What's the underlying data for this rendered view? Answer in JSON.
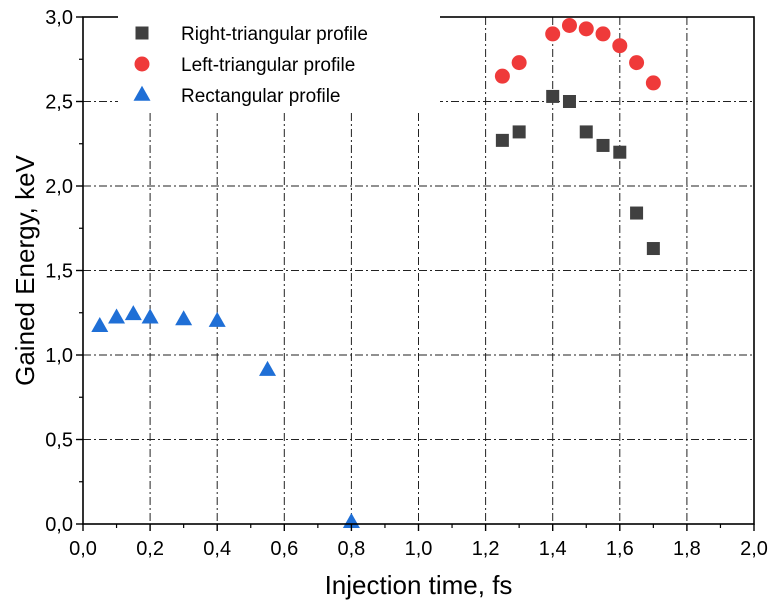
{
  "chart_data": {
    "type": "scatter",
    "title": "",
    "xlabel": "Injection time, fs",
    "ylabel": "Gained Energy, keV",
    "xlim": [
      0.0,
      2.0
    ],
    "ylim": [
      0.0,
      3.0
    ],
    "x_ticks": [
      0.0,
      0.2,
      0.4,
      0.6,
      0.8,
      1.0,
      1.2,
      1.4,
      1.6,
      1.8,
      2.0
    ],
    "y_ticks": [
      0.0,
      0.5,
      1.0,
      1.5,
      2.0,
      2.5,
      3.0
    ],
    "x_tick_labels": [
      "0,0",
      "0,2",
      "0,4",
      "0,6",
      "0,8",
      "1,0",
      "1,2",
      "1,4",
      "1,6",
      "1,8",
      "2,0"
    ],
    "y_tick_labels": [
      "0,0",
      "0,5",
      "1,0",
      "1,5",
      "2,0",
      "2,5",
      "3,0"
    ],
    "grid": true,
    "legend_position": "top-left",
    "series": [
      {
        "name": "Right-triangular profile",
        "marker": "square",
        "color": "#404040",
        "x": [
          1.25,
          1.3,
          1.4,
          1.45,
          1.5,
          1.55,
          1.6,
          1.65,
          1.7
        ],
        "y": [
          2.27,
          2.32,
          2.53,
          2.5,
          2.32,
          2.24,
          2.2,
          1.84,
          1.63
        ]
      },
      {
        "name": "Left-triangular profile",
        "marker": "circle",
        "color": "#ef3a3a",
        "x": [
          1.25,
          1.3,
          1.4,
          1.45,
          1.5,
          1.55,
          1.6,
          1.65,
          1.7
        ],
        "y": [
          2.65,
          2.73,
          2.9,
          2.95,
          2.93,
          2.9,
          2.83,
          2.73,
          2.61
        ]
      },
      {
        "name": "Rectangular profile",
        "marker": "triangle",
        "color": "#1f6fd6",
        "x": [
          0.05,
          0.1,
          0.15,
          0.2,
          0.3,
          0.4,
          0.55,
          0.8
        ],
        "y": [
          1.17,
          1.22,
          1.24,
          1.22,
          1.21,
          1.2,
          0.91,
          0.01
        ]
      }
    ]
  }
}
